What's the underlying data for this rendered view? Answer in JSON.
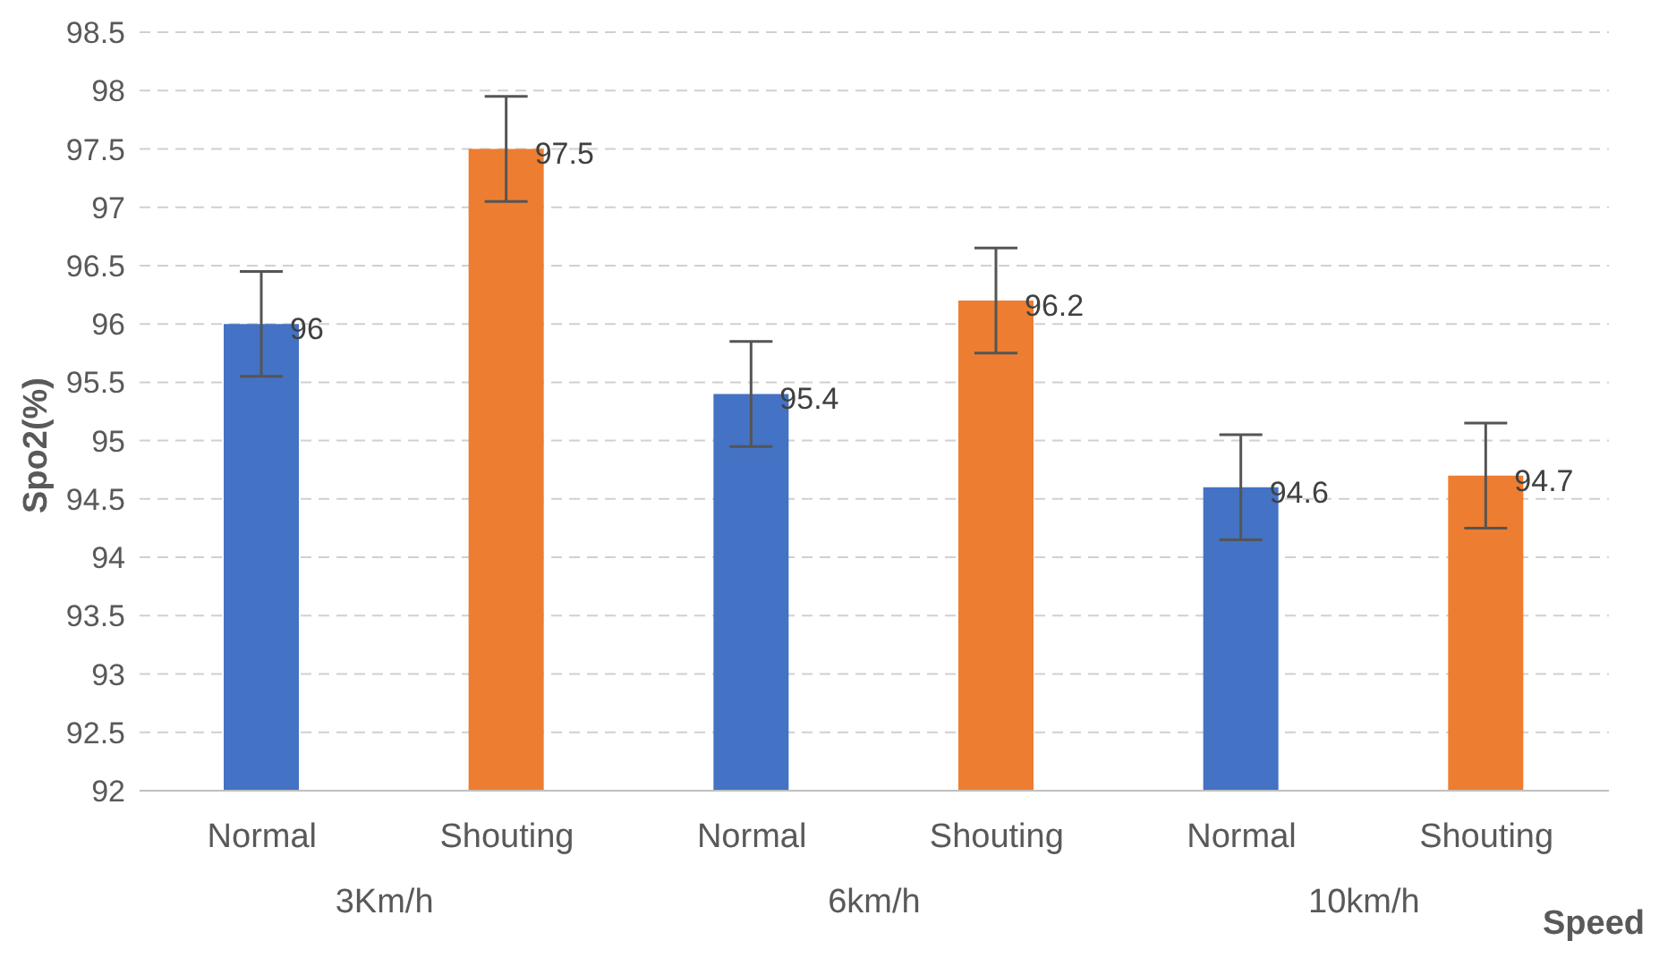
{
  "chart_data": {
    "type": "bar",
    "xlabel": "Speed",
    "ylabel": "Spo2(%)",
    "categories": [
      "Normal",
      "Shouting",
      "Normal",
      "Shouting",
      "Normal",
      "Shouting"
    ],
    "values": [
      96,
      97.5,
      95.4,
      96.2,
      94.6,
      94.7
    ],
    "colors": [
      "#4472c4",
      "#ed7d31",
      "#4472c4",
      "#ed7d31",
      "#4472c4",
      "#ed7d31"
    ],
    "errors": [
      0.45,
      0.45,
      0.45,
      0.45,
      0.45,
      0.45
    ],
    "data_labels": true,
    "annotations": [
      "3Km/h",
      "6km/h",
      "10km/h"
    ],
    "ylim": [
      92,
      98.5
    ],
    "yticks": [
      92,
      92.5,
      93,
      93.5,
      94,
      94.5,
      95,
      95.5,
      96,
      96.5,
      97,
      97.5,
      98,
      98.5
    ],
    "grid": "y",
    "line_style": "dashed"
  }
}
